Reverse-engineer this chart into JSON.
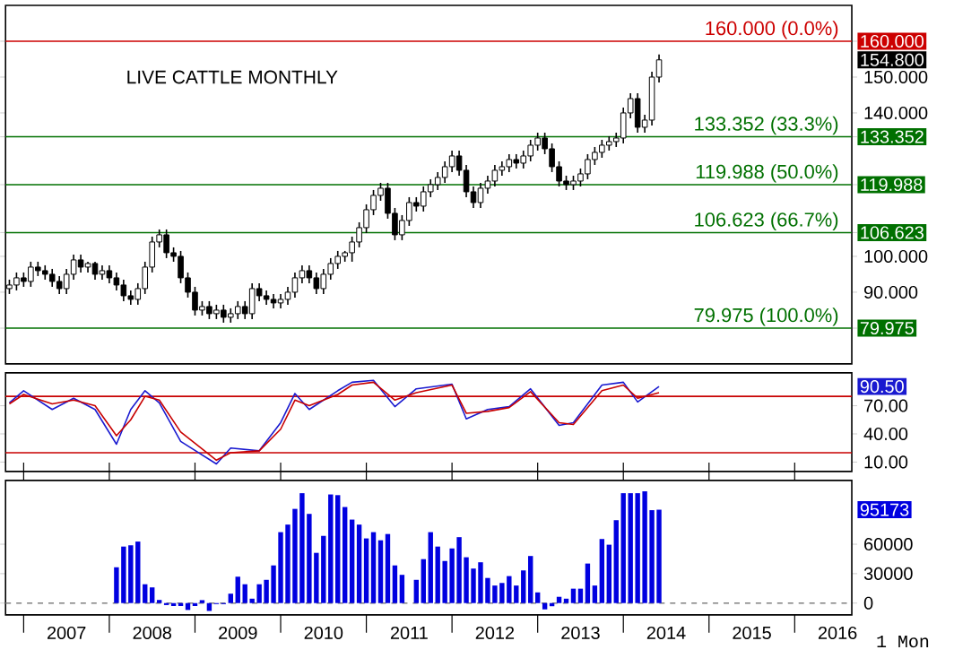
{
  "chart_data": [
    {
      "type": "candlestick",
      "title": "LIVE CATTLE MONTHLY",
      "color": "#000000",
      "x": [
        "2006-11",
        "2006-12",
        "2007-01",
        "2007-02",
        "2007-03",
        "2007-04",
        "2007-05",
        "2007-06",
        "2007-07",
        "2007-08",
        "2007-09",
        "2007-10",
        "2007-11",
        "2007-12",
        "2008-01",
        "2008-02",
        "2008-03",
        "2008-04",
        "2008-05",
        "2008-06",
        "2008-07",
        "2008-08",
        "2008-09",
        "2008-10",
        "2008-11",
        "2008-12",
        "2009-01",
        "2009-02",
        "2009-03",
        "2009-04",
        "2009-05",
        "2009-06",
        "2009-07",
        "2009-08",
        "2009-09",
        "2009-10",
        "2009-11",
        "2009-12",
        "2010-01",
        "2010-02",
        "2010-03",
        "2010-04",
        "2010-05",
        "2010-06",
        "2010-07",
        "2010-08",
        "2010-09",
        "2010-10",
        "2010-11",
        "2010-12",
        "2011-01",
        "2011-02",
        "2011-03",
        "2011-04",
        "2011-05",
        "2011-06",
        "2011-07",
        "2011-08",
        "2011-09",
        "2011-10",
        "2011-11",
        "2011-12",
        "2012-01",
        "2012-02",
        "2012-03",
        "2012-04",
        "2012-05",
        "2012-06",
        "2012-07",
        "2012-08",
        "2012-09",
        "2012-10",
        "2012-11",
        "2012-12",
        "2013-01",
        "2013-02",
        "2013-03",
        "2013-04",
        "2013-05",
        "2013-06",
        "2013-07",
        "2013-08",
        "2013-09",
        "2013-10",
        "2013-11",
        "2013-12",
        "2014-01",
        "2014-02",
        "2014-03",
        "2014-04",
        "2014-05",
        "2014-06"
      ],
      "ohlc": [
        [
          91,
          93.5,
          89.5,
          92
        ],
        [
          92,
          95.5,
          90.5,
          94
        ],
        [
          94,
          95.5,
          91.5,
          93
        ],
        [
          93,
          98.5,
          91.5,
          97
        ],
        [
          97,
          98.5,
          94.5,
          96
        ],
        [
          96,
          97.5,
          93.5,
          95
        ],
        [
          95,
          96.5,
          91.5,
          93
        ],
        [
          93,
          94.5,
          89.5,
          91
        ],
        [
          91,
          96.5,
          89.5,
          95
        ],
        [
          95,
          100.5,
          93.5,
          99
        ],
        [
          99,
          100.5,
          95.5,
          97
        ],
        [
          97,
          98.5,
          95.5,
          98
        ],
        [
          98,
          98.5,
          93.5,
          95
        ],
        [
          95,
          97.5,
          93.5,
          96
        ],
        [
          96,
          97.5,
          92.5,
          94
        ],
        [
          94,
          95.5,
          90.5,
          92
        ],
        [
          92,
          93.5,
          87.5,
          89
        ],
        [
          89,
          90.5,
          86.5,
          88
        ],
        [
          88,
          92.5,
          86.5,
          91
        ],
        [
          91,
          98.5,
          89.5,
          97
        ],
        [
          97,
          105.5,
          95.5,
          104
        ],
        [
          104,
          107.5,
          102.5,
          106
        ],
        [
          106,
          107.5,
          99.5,
          101
        ],
        [
          101,
          102.5,
          98.5,
          100
        ],
        [
          100,
          101.5,
          92.5,
          94
        ],
        [
          94,
          95.5,
          88.5,
          90
        ],
        [
          90,
          91.5,
          83.5,
          85
        ],
        [
          85,
          87.5,
          83.5,
          86
        ],
        [
          86,
          87.5,
          82.5,
          84
        ],
        [
          84,
          86.5,
          82.5,
          85
        ],
        [
          85,
          86.5,
          81.5,
          83
        ],
        [
          83,
          85.5,
          81.5,
          84
        ],
        [
          84,
          87.5,
          82.5,
          86
        ],
        [
          86,
          87.5,
          82.5,
          84
        ],
        [
          84,
          92.5,
          82.5,
          91
        ],
        [
          91,
          92.5,
          87.5,
          89
        ],
        [
          89,
          90.5,
          86.5,
          88
        ],
        [
          88,
          89.5,
          85.5,
          87
        ],
        [
          87,
          89.5,
          85.5,
          88
        ],
        [
          88,
          91.5,
          86.5,
          90
        ],
        [
          90,
          95.5,
          88.5,
          94
        ],
        [
          94,
          97.5,
          92.5,
          96
        ],
        [
          96,
          97.5,
          92.5,
          94
        ],
        [
          94,
          95.5,
          89.5,
          91
        ],
        [
          91,
          96.5,
          89.5,
          95
        ],
        [
          95,
          99.5,
          93.5,
          98
        ],
        [
          98,
          101.5,
          96.5,
          100
        ],
        [
          100,
          101.5,
          98.5,
          101
        ],
        [
          101,
          105.5,
          98.5,
          104
        ],
        [
          104,
          109.5,
          102.5,
          108
        ],
        [
          108,
          114.5,
          106.5,
          113
        ],
        [
          113,
          118.5,
          111.5,
          117
        ],
        [
          117,
          120.5,
          115.5,
          119
        ],
        [
          119,
          120.5,
          110.5,
          112
        ],
        [
          112,
          113.5,
          104.5,
          106
        ],
        [
          106,
          111.5,
          104.5,
          110
        ],
        [
          110,
          116.5,
          108.5,
          115
        ],
        [
          115,
          116.5,
          112.5,
          114
        ],
        [
          114,
          119.5,
          112.5,
          118
        ],
        [
          118,
          121.5,
          116.5,
          120
        ],
        [
          120,
          123.5,
          118.5,
          122
        ],
        [
          122,
          126.5,
          120.5,
          125
        ],
        [
          125,
          129.5,
          123.5,
          128
        ],
        [
          128,
          129.5,
          122.5,
          124
        ],
        [
          124,
          125.5,
          116.5,
          118
        ],
        [
          118,
          119.5,
          113.5,
          115
        ],
        [
          115,
          120.5,
          113.5,
          119
        ],
        [
          119,
          122.5,
          117.5,
          121
        ],
        [
          121,
          125.5,
          119.5,
          124
        ],
        [
          124,
          126.5,
          122.5,
          125
        ],
        [
          125,
          128.5,
          123.5,
          127
        ],
        [
          127,
          128.5,
          124.5,
          126
        ],
        [
          126,
          129.5,
          124.5,
          128
        ],
        [
          128,
          132.5,
          126.5,
          131
        ],
        [
          131,
          134.5,
          129.5,
          133
        ],
        [
          133,
          134.5,
          128.5,
          130
        ],
        [
          130,
          131.5,
          123.5,
          125
        ],
        [
          125,
          126.5,
          119.5,
          121
        ],
        [
          121,
          122.5,
          118.5,
          120
        ],
        [
          120,
          122.5,
          118.5,
          121
        ],
        [
          121,
          124.5,
          119.5,
          123
        ],
        [
          123,
          128.5,
          121.5,
          127
        ],
        [
          127,
          130.5,
          125.5,
          129
        ],
        [
          129,
          132.5,
          127.5,
          131
        ],
        [
          131,
          133.5,
          129.5,
          132
        ],
        [
          132,
          134.5,
          130.5,
          133
        ],
        [
          133,
          141.5,
          131.5,
          140
        ],
        [
          140,
          145.5,
          138.5,
          144
        ],
        [
          144,
          145.5,
          134.5,
          136
        ],
        [
          136,
          139.5,
          134.5,
          138
        ],
        [
          138,
          151.5,
          136.5,
          150
        ],
        [
          150,
          156.3,
          148.5,
          154.8
        ]
      ],
      "xlim": [
        "2006-10-15",
        "2016-09-01"
      ],
      "ylim": [
        70,
        170
      ],
      "yticks": [
        {
          "value": 79.975,
          "label": "79.975"
        },
        {
          "value": 90,
          "label": "90.000"
        },
        {
          "value": 100,
          "label": "100.000"
        },
        {
          "value": 106.623,
          "label": "106.623"
        },
        {
          "value": 119.988,
          "label": "119.988"
        },
        {
          "value": 133.352,
          "label": "133.352"
        },
        {
          "value": 140,
          "label": "140.000"
        },
        {
          "value": 150,
          "label": "150.000"
        },
        {
          "value": 160,
          "label": "160.000"
        }
      ],
      "ref_lines": [
        {
          "axis": "y",
          "value": 160,
          "label": "160.000 (0.0%)",
          "color": "#cc0000"
        },
        {
          "axis": "y",
          "value": 133.352,
          "label": "133.352 (33.3%)",
          "color": "#007000"
        },
        {
          "axis": "y",
          "value": 119.988,
          "label": "119.988 (50.0%)",
          "color": "#007000"
        },
        {
          "axis": "y",
          "value": 106.623,
          "label": "106.623 (66.7%)",
          "color": "#007000"
        },
        {
          "axis": "y",
          "value": 79.975,
          "label": "79.975 (100.0%)",
          "color": "#007000"
        }
      ],
      "annotations": [
        "154.800"
      ],
      "tick_labels": "y"
    },
    {
      "type": "line",
      "series": [
        {
          "color": "#1a1ad0",
          "x": [
            "2006-11",
            "2007-01",
            "2007-05",
            "2007-08",
            "2007-11",
            "2008-02",
            "2008-04",
            "2008-06",
            "2008-08",
            "2008-11",
            "2009-04",
            "2009-06",
            "2009-10",
            "2010-01",
            "2010-03",
            "2010-05",
            "2010-09",
            "2010-11",
            "2011-02",
            "2011-05",
            "2011-08",
            "2012-01",
            "2012-03",
            "2012-06",
            "2012-09",
            "2012-12",
            "2013-04",
            "2013-06",
            "2013-10",
            "2014-01",
            "2014-03",
            "2014-06"
          ],
          "values": [
            73,
            86,
            66,
            78,
            66,
            29,
            66,
            86,
            73,
            32,
            8,
            25,
            22,
            52,
            83,
            66,
            86,
            95,
            97,
            69,
            88,
            93,
            56,
            66,
            69,
            88,
            49,
            52,
            92,
            95,
            74,
            90.5
          ]
        },
        {
          "color": "#c80000",
          "x": [
            "2006-11",
            "2007-01",
            "2007-05",
            "2007-08",
            "2007-11",
            "2008-02",
            "2008-04",
            "2008-06",
            "2008-08",
            "2008-11",
            "2009-04",
            "2009-06",
            "2009-10",
            "2010-01",
            "2010-03",
            "2010-05",
            "2010-09",
            "2010-11",
            "2011-02",
            "2011-05",
            "2011-08",
            "2012-01",
            "2012-03",
            "2012-06",
            "2012-09",
            "2012-12",
            "2013-04",
            "2013-06",
            "2013-10",
            "2014-01",
            "2014-03",
            "2014-06"
          ],
          "values": [
            72,
            82,
            72,
            76,
            70,
            38,
            55,
            80,
            76,
            42,
            12,
            20,
            22,
            45,
            76,
            70,
            82,
            92,
            95,
            76,
            84,
            92,
            62,
            64,
            68,
            85,
            52,
            50,
            86,
            92,
            78,
            84
          ]
        }
      ],
      "xlim": [
        "2006-10-15",
        "2016-09-01"
      ],
      "ylim": [
        0,
        105
      ],
      "yticks": [
        {
          "value": 10,
          "label": "10.00"
        },
        {
          "value": 40,
          "label": "40.00"
        },
        {
          "value": 70,
          "label": "70.00"
        }
      ],
      "ref_lines": [
        {
          "axis": "y",
          "value": 80,
          "color": "#c80000"
        },
        {
          "axis": "y",
          "value": 20,
          "color": "#c80000"
        }
      ],
      "annotations": [
        "90.50"
      ],
      "tick_labels": "y"
    },
    {
      "type": "bar",
      "color": "#0000e0",
      "x": [
        "2008-02",
        "2008-03",
        "2008-04",
        "2008-05",
        "2008-06",
        "2008-07",
        "2008-08",
        "2008-09",
        "2008-10",
        "2008-11",
        "2008-12",
        "2009-01",
        "2009-02",
        "2009-03",
        "2009-04",
        "2009-05",
        "2009-06",
        "2009-07",
        "2009-08",
        "2009-09",
        "2009-10",
        "2009-11",
        "2009-12",
        "2010-01",
        "2010-02",
        "2010-03",
        "2010-04",
        "2010-05",
        "2010-06",
        "2010-07",
        "2010-08",
        "2010-09",
        "2010-10",
        "2010-11",
        "2010-12",
        "2011-01",
        "2011-02",
        "2011-03",
        "2011-04",
        "2011-05",
        "2011-06",
        "2011-07",
        "2011-08",
        "2011-09",
        "2011-10",
        "2011-11",
        "2011-12",
        "2012-01",
        "2012-02",
        "2012-03",
        "2012-04",
        "2012-05",
        "2012-06",
        "2012-07",
        "2012-08",
        "2012-09",
        "2012-10",
        "2012-11",
        "2012-12",
        "2013-01",
        "2013-02",
        "2013-03",
        "2013-04",
        "2013-05",
        "2013-06",
        "2013-07",
        "2013-08",
        "2013-09",
        "2013-10",
        "2013-11",
        "2013-12",
        "2014-01",
        "2014-02",
        "2014-03",
        "2014-04",
        "2014-05",
        "2014-06"
      ],
      "values": [
        36500,
        57600,
        58900,
        62700,
        19200,
        16000,
        3200,
        -2000,
        -3000,
        -3000,
        -7000,
        -3000,
        3000,
        -8000,
        -1000,
        -1000,
        9600,
        26900,
        19200,
        4500,
        19200,
        23700,
        38400,
        72300,
        80000,
        96000,
        112000,
        90900,
        51200,
        68500,
        110700,
        110000,
        97900,
        85100,
        80000,
        65900,
        72300,
        64000,
        70400,
        38400,
        28800,
        0,
        23700,
        44800,
        72300,
        57600,
        42900,
        55700,
        67200,
        46700,
        35200,
        41600,
        25600,
        17900,
        20500,
        27500,
        17900,
        33300,
        48000,
        10900,
        -6400,
        -3200,
        6400,
        4500,
        14700,
        14700,
        40300,
        17900,
        65300,
        59500,
        84500,
        112000,
        112000,
        112000,
        113900,
        94700,
        95173
      ],
      "xlim": [
        "2006-10-15",
        "2016-09-01"
      ],
      "ylim": [
        -12000,
        125000
      ],
      "yticks": [
        0,
        30000,
        60000
      ],
      "xticks": [
        {
          "value": "2007-01",
          "label": null
        },
        {
          "value": "2007-07",
          "label": "2007"
        },
        {
          "value": "2008-01",
          "label": null
        },
        {
          "value": "2008-07",
          "label": "2008"
        },
        {
          "value": "2009-01",
          "label": null
        },
        {
          "value": "2009-07",
          "label": "2009"
        },
        {
          "value": "2010-01",
          "label": null
        },
        {
          "value": "2010-07",
          "label": "2010"
        },
        {
          "value": "2011-01",
          "label": null
        },
        {
          "value": "2011-07",
          "label": "2011"
        },
        {
          "value": "2012-01",
          "label": null
        },
        {
          "value": "2012-07",
          "label": "2012"
        },
        {
          "value": "2013-01",
          "label": null
        },
        {
          "value": "2013-07",
          "label": "2013"
        },
        {
          "value": "2014-01",
          "label": null
        },
        {
          "value": "2014-07",
          "label": "2014"
        },
        {
          "value": "2015-01",
          "label": null
        },
        {
          "value": "2015-07",
          "label": "2015"
        },
        {
          "value": "2016-01",
          "label": null
        },
        {
          "value": "2016-07",
          "label": "2016"
        }
      ],
      "ref_lines": [
        {
          "axis": "y",
          "value": 0,
          "color": "#808080",
          "line_style": "dashed"
        }
      ],
      "annotations": [
        "95173",
        "1 Mon"
      ]
    }
  ]
}
